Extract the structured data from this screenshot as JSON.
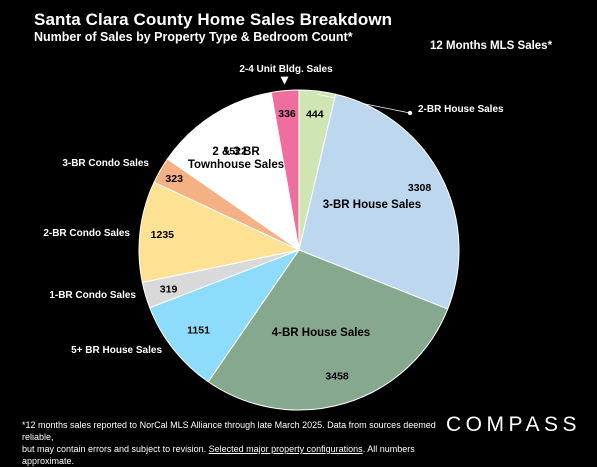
{
  "header": {
    "title": "Santa Clara County Home Sales Breakdown",
    "subtitle": "Number of Sales by Property Type & Bedroom Count*",
    "period": "12 Months MLS Sales*"
  },
  "chart_data": {
    "type": "pie",
    "title": "Santa Clara County Home Sales Breakdown",
    "subtitle": "Number of Sales by Property Type & Bedroom Count*",
    "slices": [
      {
        "label": "2-BR House Sales",
        "value": 444,
        "color": "#cfe5b4"
      },
      {
        "label": "3-BR House Sales",
        "value": 3308,
        "color": "#bdd7ee"
      },
      {
        "label": "4-BR House Sales",
        "value": 3458,
        "color": "#86a88e"
      },
      {
        "label": "5+ BR House Sales",
        "value": 1151,
        "color": "#8ddcfb"
      },
      {
        "label": "1-BR Condo Sales",
        "value": 319,
        "color": "#d9d9d9"
      },
      {
        "label": "2-BR Condo Sales",
        "value": 1235,
        "color": "#fde294"
      },
      {
        "label": "3-BR Condo Sales",
        "value": 323,
        "color": "#f4b183"
      },
      {
        "label": "2 & 3 BR Townhouse Sales",
        "value": 1522,
        "color": "#ffffff"
      },
      {
        "label": "2-4 Unit Bldg. Sales",
        "value": 336,
        "color": "#ee6e9e"
      }
    ]
  },
  "footnote": {
    "line1": "*12 months sales reported to NorCal MLS Alliance through late March 2025. Data from sources deemed reliable,",
    "line2a": "but may contain errors and subject to revision. ",
    "link": "Selected major property configurations",
    "line2b": ". All numbers approximate."
  },
  "brand": {
    "logo": "COMPASS"
  }
}
